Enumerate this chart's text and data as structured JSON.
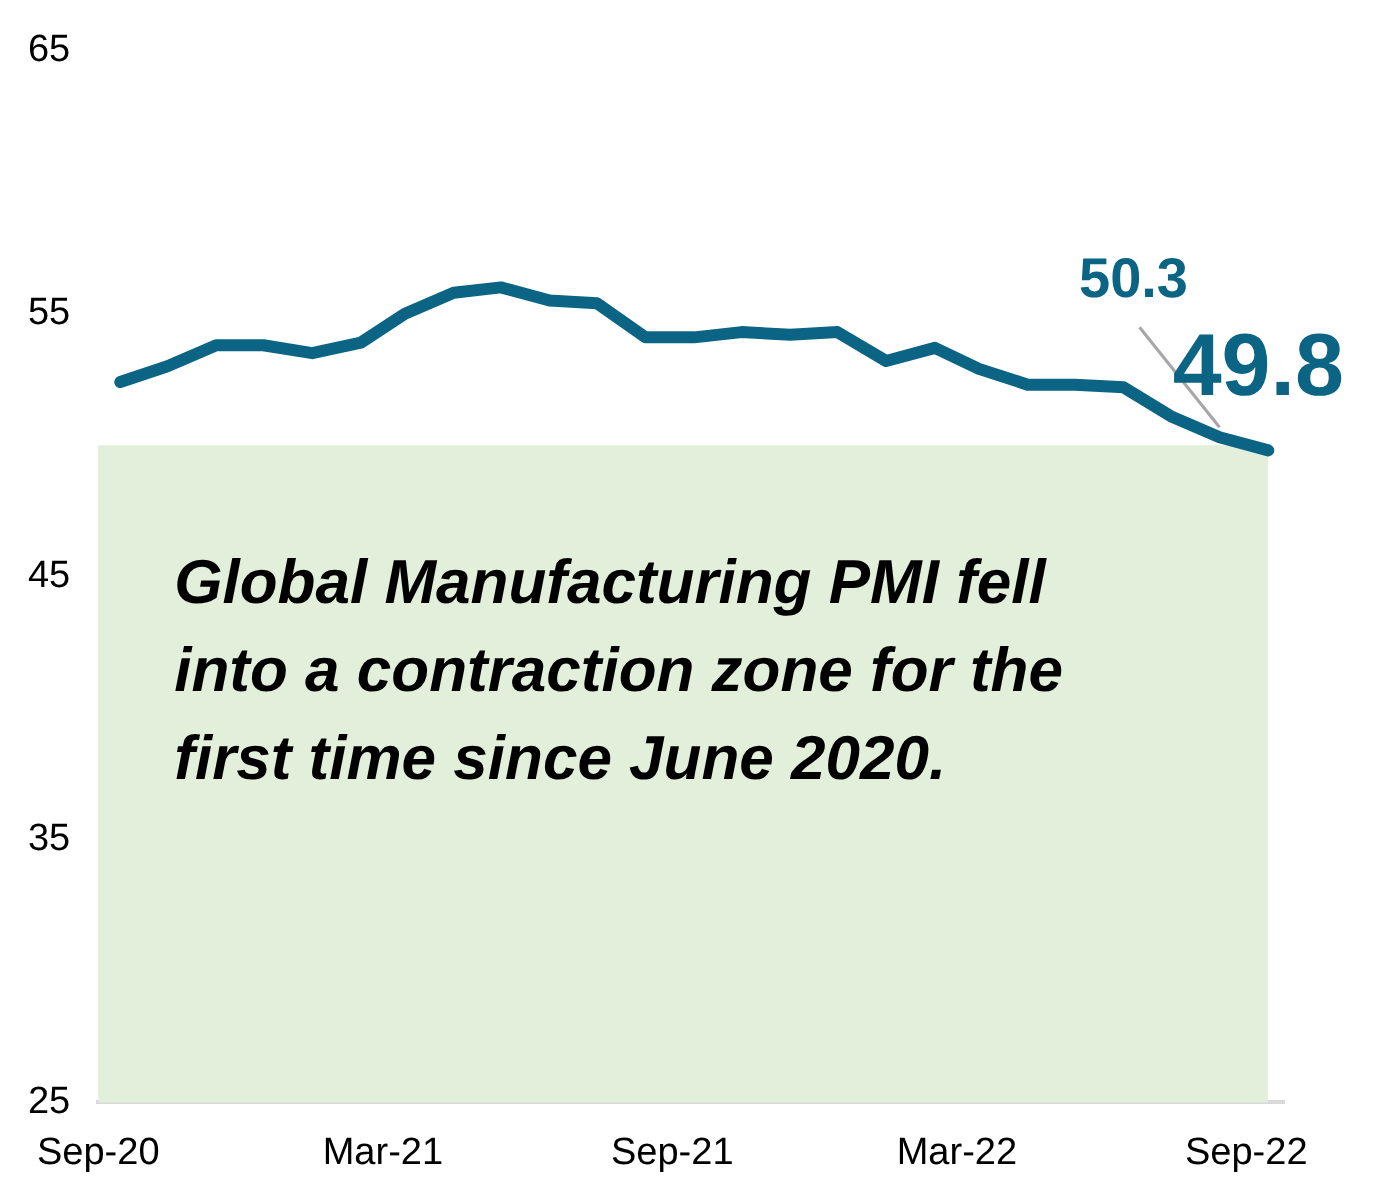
{
  "chart_data": {
    "type": "line",
    "x": [
      "2020-09-15",
      "2020-10-15",
      "2020-11-15",
      "2020-12-15",
      "2021-01-15",
      "2021-02-15",
      "2021-03-15",
      "2021-04-15",
      "2021-05-15",
      "2021-06-15",
      "2021-07-15",
      "2021-08-15",
      "2021-09-15",
      "2021-10-15",
      "2021-11-15",
      "2021-12-15",
      "2022-01-15",
      "2022-02-15",
      "2022-03-15",
      "2022-04-15",
      "2022-05-15",
      "2022-06-15",
      "2022-07-15",
      "2022-08-15",
      "2022-09-15"
    ],
    "series": [
      {
        "color": "#0b6483",
        "values": [
          52.4,
          53.0,
          53.8,
          53.8,
          53.5,
          53.9,
          55.0,
          55.8,
          56.0,
          55.5,
          55.4,
          54.1,
          54.1,
          54.3,
          54.2,
          54.3,
          53.2,
          53.7,
          52.9,
          52.3,
          52.3,
          52.2,
          51.1,
          50.3,
          49.8
        ],
        "value_labels": [
          null,
          null,
          null,
          null,
          null,
          null,
          null,
          null,
          null,
          null,
          null,
          null,
          null,
          null,
          null,
          null,
          null,
          null,
          null,
          null,
          null,
          null,
          null,
          "50.3",
          "49.8"
        ]
      }
    ],
    "xlim": [
      "2020-09-01",
      "2022-09-25"
    ],
    "xticks": [
      {
        "value": "2020-09-01",
        "label": "Sep-20"
      },
      {
        "value": "2021-03-01",
        "label": "Mar-21"
      },
      {
        "value": "2021-09-01",
        "label": "Sep-21"
      },
      {
        "value": "2022-03-01",
        "label": "Mar-22"
      },
      {
        "value": "2022-09-01",
        "label": "Sep-22"
      }
    ],
    "ylim": [
      25,
      65
    ],
    "yticks": [
      25,
      35,
      45,
      55,
      65
    ],
    "bands": [
      {
        "axis": "y",
        "from": 25,
        "to": 50,
        "color": "#e2efda",
        "label": "Global Manufacturing PMI fell into a contraction zone for the first time since June 2020."
      }
    ],
    "grid": false,
    "legend": false,
    "marker": "none",
    "line_style": "solid"
  }
}
